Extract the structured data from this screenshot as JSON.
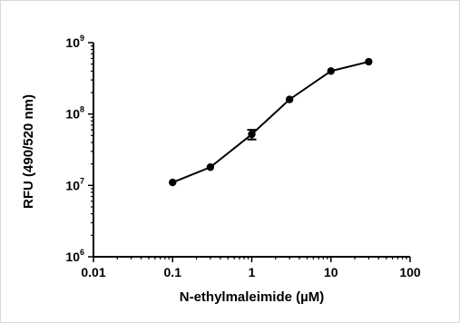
{
  "chart_data": {
    "type": "line",
    "title": "",
    "xlabel": "N-ethylmaleimide (µM)",
    "ylabel": "RFU (490/520 nm)",
    "xscale": "log",
    "yscale": "log",
    "xlim": [
      0.01,
      100
    ],
    "ylim": [
      1000000,
      1000000000
    ],
    "x_ticks": [
      {
        "value": 0.01,
        "label": "0.01"
      },
      {
        "value": 0.1,
        "label": "0.1"
      },
      {
        "value": 1,
        "label": "1"
      },
      {
        "value": 10,
        "label": "10"
      },
      {
        "value": 100,
        "label": "100"
      }
    ],
    "y_ticks": [
      {
        "value": 1000000,
        "base": "10",
        "exp": "6"
      },
      {
        "value": 10000000,
        "base": "10",
        "exp": "7"
      },
      {
        "value": 100000000,
        "base": "10",
        "exp": "8"
      },
      {
        "value": 1000000000,
        "base": "10",
        "exp": "9"
      }
    ],
    "grid": false,
    "legend": "none",
    "series": [
      {
        "color": "#000000",
        "marker": "circle",
        "points": [
          {
            "x": 0.1,
            "y": 11000000
          },
          {
            "x": 0.3,
            "y": 18000000
          },
          {
            "x": 1,
            "y": 52000000,
            "err_low": 44000000,
            "err_high": 60000000
          },
          {
            "x": 3,
            "y": 160000000
          },
          {
            "x": 10,
            "y": 400000000
          },
          {
            "x": 30,
            "y": 540000000
          }
        ]
      }
    ]
  }
}
